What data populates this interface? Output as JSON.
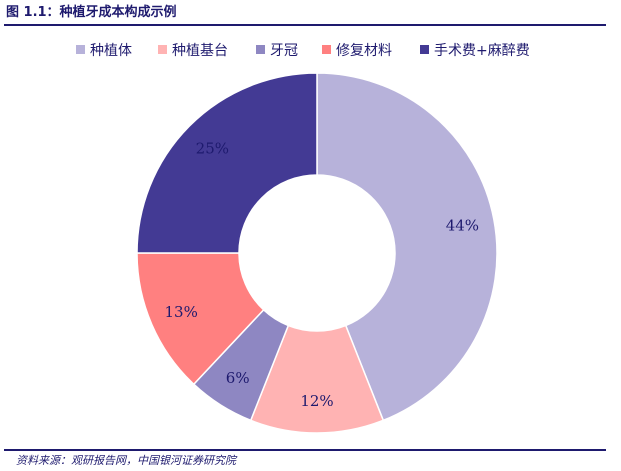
{
  "header": {
    "figure_title": "图 1.1：种植牙成本构成示例"
  },
  "footer": {
    "source": "资料来源：观研报告网，中国银河证券研究院"
  },
  "chart_data": {
    "type": "pie",
    "donut": true,
    "title": "",
    "legend_position": "top",
    "categories": [
      "种植体",
      "种植基台",
      "牙冠",
      "修复材料",
      "手术费+麻醉费"
    ],
    "values": [
      44,
      12,
      6,
      13,
      25
    ],
    "value_labels": [
      "44%",
      "12%",
      "6%",
      "13%",
      "25%"
    ],
    "colors": [
      "#b7b2da",
      "#ffb3b3",
      "#8e87c2",
      "#ff8080",
      "#433a94"
    ]
  }
}
